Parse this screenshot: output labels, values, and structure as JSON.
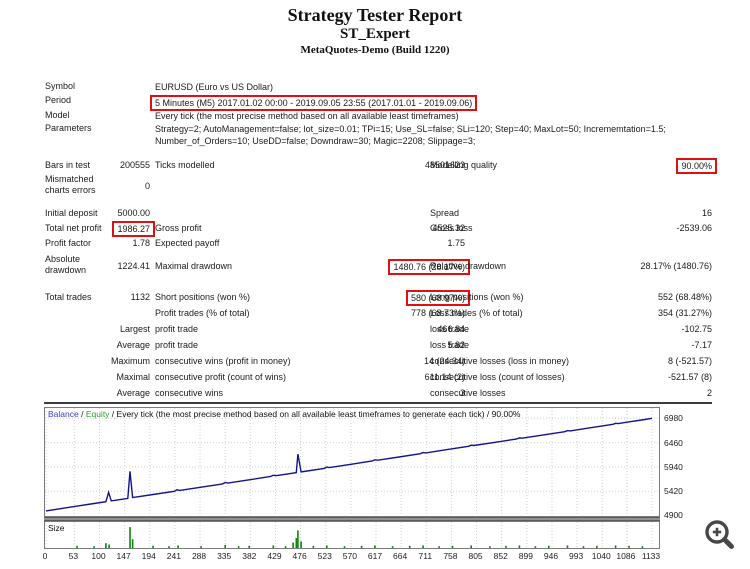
{
  "report": {
    "title": "Strategy Tester Report",
    "expert": "ST_Expert",
    "server": "MetaQuotes-Demo (Build 1220)"
  },
  "stats_rows": [
    {
      "c1": "Symbol",
      "wide": "EURUSD (Euro vs US Dollar)"
    },
    {
      "c1": "Period",
      "wide": "5 Minutes (M5) 2017.01.02 00:00 - 2019.09.05 23:55 (2017.01.01 - 2019.09.06)",
      "wide_hl": true
    },
    {
      "c1": "Model",
      "wide": "Every tick (the most precise method based on all available least timeframes)"
    },
    {
      "c1": "Parameters",
      "wide": "Strategy=2; AutoManagement=false; lot_size=0.01; TPi=15; Use_SL=false; SLi=120; Step=40; MaxLot=50; Incrememtation=1.5; Number_of_Orders=10; UseDD=false; Downdraw=30; Magic=2208; Slippage=3;"
    },
    {
      "c1": "Bars in test",
      "c2": "200555",
      "c3": "Ticks modelled",
      "c4": "48501623",
      "c5": "Modelling quality",
      "c6": "90.00%",
      "c6_hl": true
    },
    {
      "c1": "Mismatched charts errors",
      "c2": "0"
    },
    {
      "c1": "Initial deposit",
      "c2": "5000.00",
      "c5": "Spread",
      "c6": "16"
    },
    {
      "c1": "Total net profit",
      "c2": "1986.27",
      "c2_hl": true,
      "c3": "Gross profit",
      "c4": "4525.32",
      "c5": "Gross loss",
      "c6": "-2539.06"
    },
    {
      "c1": "Profit factor",
      "c2": "1.78",
      "c3": "Expected payoff",
      "c4": "1.75"
    },
    {
      "c1": "Absolute drawdown",
      "c2": "1224.41",
      "c3": "Maximal drawdown",
      "c4": "1480.76 (28.17%)",
      "c4_hl": true,
      "c5": "Relative drawdown",
      "c6": "28.17% (1480.76)"
    },
    {
      "c1": "Total trades",
      "c2": "1132",
      "c3": "Short positions (won %)",
      "c4": "580 (68.97%)",
      "c4_hl": true,
      "c5": "Long positions (won %)",
      "c6": "552 (68.48%)"
    },
    {
      "c3": "Profit trades (% of total)",
      "c4": "778 (68.73%)",
      "c5": "Loss trades (% of total)",
      "c6": "354 (31.27%)"
    },
    {
      "c2": "Largest",
      "c3": "profit trade",
      "c4": "466.84",
      "c5": "loss trade",
      "c6": "-102.75"
    },
    {
      "c2": "Average",
      "c3": "profit trade",
      "c4": "5.82",
      "c5": "loss trade",
      "c6": "-7.17"
    },
    {
      "c2": "Maximum",
      "c3": "consecutive wins (profit in money)",
      "c4": "14 (24.34)",
      "c5": "consecutive losses (loss in money)",
      "c6": "8 (-521.57)"
    },
    {
      "c2": "Maximal",
      "c3": "consecutive profit (count of wins)",
      "c4": "611.14 (2)",
      "c5": "consecutive loss (count of losses)",
      "c6": "-521.57 (8)"
    },
    {
      "c2": "Average",
      "c3": "consecutive wins",
      "c4": "3",
      "c5": "consecutive losses",
      "c6": "2"
    }
  ],
  "chart_data": {
    "type": "line",
    "legend": {
      "balance": "Balance",
      "equity": "Equity",
      "sep": " / ",
      "rest": "Every tick (the most precise method based on all available least timeframes to generate each tick) / 90.00%"
    },
    "size_label": "Size",
    "xlabel": "",
    "ylabel": "",
    "ylim": [
      4900,
      7200
    ],
    "y_ticks": [
      6980,
      6460,
      5940,
      5420,
      4900
    ],
    "y_gridlines": [
      6980,
      6460,
      5940,
      5420
    ],
    "x_ticks": [
      0,
      53,
      100,
      147,
      194,
      241,
      288,
      335,
      382,
      429,
      476,
      523,
      570,
      617,
      664,
      711,
      758,
      805,
      852,
      899,
      946,
      993,
      1040,
      1086,
      1133
    ],
    "balance_series": [
      [
        0,
        5000
      ],
      [
        30,
        5052
      ],
      [
        60,
        5105
      ],
      [
        90,
        5157
      ],
      [
        112,
        5196
      ],
      [
        117,
        5396
      ],
      [
        122,
        5213
      ],
      [
        140,
        5245
      ],
      [
        153,
        5267
      ],
      [
        157,
        5847
      ],
      [
        162,
        5285
      ],
      [
        168,
        5294
      ],
      [
        200,
        5350
      ],
      [
        240,
        5419
      ],
      [
        245,
        5450
      ],
      [
        250,
        5437
      ],
      [
        290,
        5507
      ],
      [
        330,
        5577
      ],
      [
        335,
        5607
      ],
      [
        340,
        5594
      ],
      [
        380,
        5664
      ],
      [
        420,
        5734
      ],
      [
        425,
        5762
      ],
      [
        430,
        5751
      ],
      [
        460,
        5804
      ],
      [
        468,
        5818
      ],
      [
        471,
        6215
      ],
      [
        477,
        5833
      ],
      [
        482,
        5842
      ],
      [
        520,
        5909
      ],
      [
        525,
        5936
      ],
      [
        530,
        5926
      ],
      [
        570,
        5996
      ],
      [
        610,
        6066
      ],
      [
        615,
        6092
      ],
      [
        620,
        6083
      ],
      [
        660,
        6153
      ],
      [
        700,
        6223
      ],
      [
        705,
        6248
      ],
      [
        710,
        6240
      ],
      [
        750,
        6310
      ],
      [
        790,
        6380
      ],
      [
        795,
        6404
      ],
      [
        800,
        6397
      ],
      [
        840,
        6467
      ],
      [
        880,
        6537
      ],
      [
        885,
        6560
      ],
      [
        890,
        6554
      ],
      [
        930,
        6624
      ],
      [
        970,
        6694
      ],
      [
        975,
        6716
      ],
      [
        980,
        6711
      ],
      [
        1020,
        6781
      ],
      [
        1060,
        6851
      ],
      [
        1065,
        6872
      ],
      [
        1070,
        6867
      ],
      [
        1100,
        6920
      ],
      [
        1120,
        6955
      ],
      [
        1133,
        6980
      ]
    ],
    "size_bars": [
      [
        58,
        0.1
      ],
      [
        90,
        0.08
      ],
      [
        112,
        0.22
      ],
      [
        118,
        0.16
      ],
      [
        157,
        0.95
      ],
      [
        162,
        0.4
      ],
      [
        200,
        0.1
      ],
      [
        230,
        0.08
      ],
      [
        247,
        0.12
      ],
      [
        290,
        0.08
      ],
      [
        335,
        0.14
      ],
      [
        360,
        0.08
      ],
      [
        380,
        0.1
      ],
      [
        425,
        0.12
      ],
      [
        448,
        0.08
      ],
      [
        462,
        0.25
      ],
      [
        468,
        0.45
      ],
      [
        471,
        0.8
      ],
      [
        477,
        0.3
      ],
      [
        500,
        0.1
      ],
      [
        525,
        0.12
      ],
      [
        558,
        0.08
      ],
      [
        590,
        0.1
      ],
      [
        615,
        0.12
      ],
      [
        648,
        0.08
      ],
      [
        680,
        0.1
      ],
      [
        705,
        0.12
      ],
      [
        735,
        0.08
      ],
      [
        760,
        0.1
      ],
      [
        795,
        0.12
      ],
      [
        830,
        0.08
      ],
      [
        860,
        0.1
      ],
      [
        885,
        0.12
      ],
      [
        915,
        0.08
      ],
      [
        940,
        0.1
      ],
      [
        975,
        0.12
      ],
      [
        1005,
        0.08
      ],
      [
        1030,
        0.1
      ],
      [
        1065,
        0.12
      ],
      [
        1090,
        0.1
      ],
      [
        1115,
        0.08
      ]
    ]
  },
  "colors": {
    "highlight_red": "#dd1111",
    "balance_line": "#14148c",
    "balance_label": "#3b3bd0",
    "equity_label": "#2f9e2f",
    "size_bar": "#0a860a",
    "grid": "#ccd4c8"
  },
  "icons": {
    "zoom": "zoom-in-magnifier"
  }
}
